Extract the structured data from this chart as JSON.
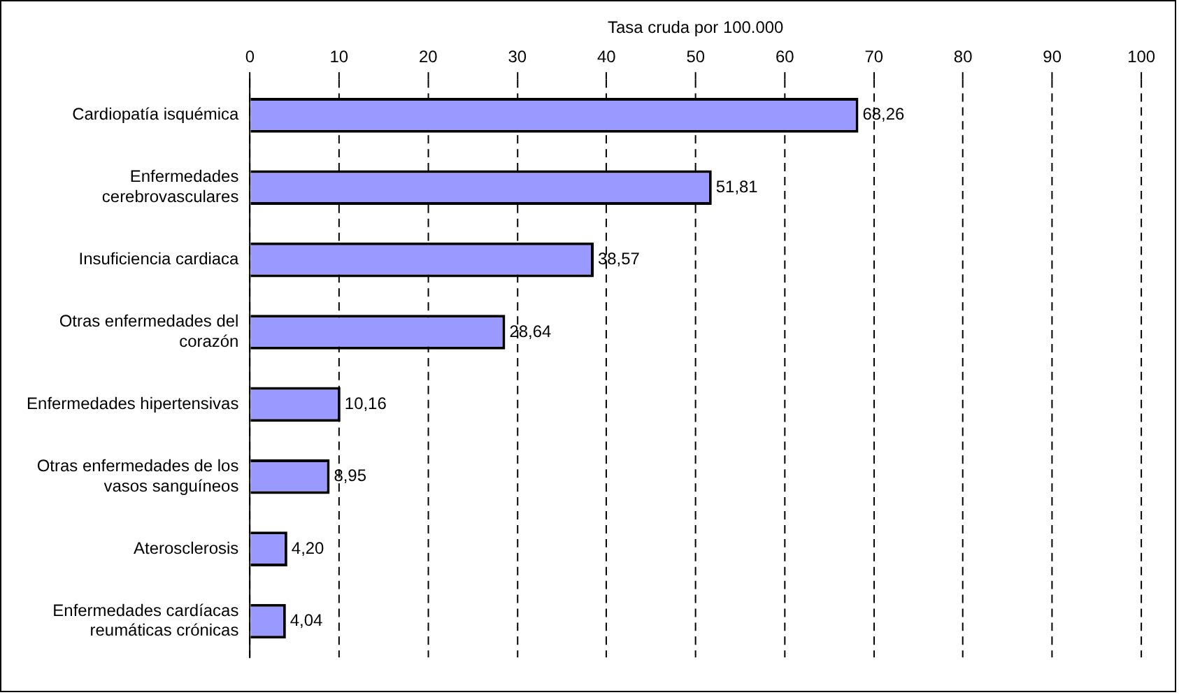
{
  "chart_data": {
    "type": "bar",
    "orientation": "horizontal",
    "xlabel": "Tasa cruda por 100.000",
    "categories": [
      "Cardiopatía isquémica",
      "Enfermedades\ncerebrovasculares",
      "Insuficiencia cardiaca",
      "Otras enfermedades del\ncorazón",
      "Enfermedades hipertensivas",
      "Otras enfermedades de los\nvasos sanguíneos",
      "Aterosclerosis",
      "Enfermedades cardíacas\nreumáticas crónicas"
    ],
    "values": [
      68.26,
      51.81,
      38.57,
      28.64,
      10.16,
      8.95,
      4.2,
      4.04
    ],
    "value_labels": [
      "68,26",
      "51,81",
      "38,57",
      "28,64",
      "10,16",
      "8,95",
      "4,20",
      "4,04"
    ],
    "color": "#9999ff",
    "xlim": [
      0,
      100
    ],
    "xticks": [
      0,
      10,
      20,
      30,
      40,
      50,
      60,
      70,
      80,
      90,
      100
    ],
    "grid": "x",
    "legend": false
  }
}
